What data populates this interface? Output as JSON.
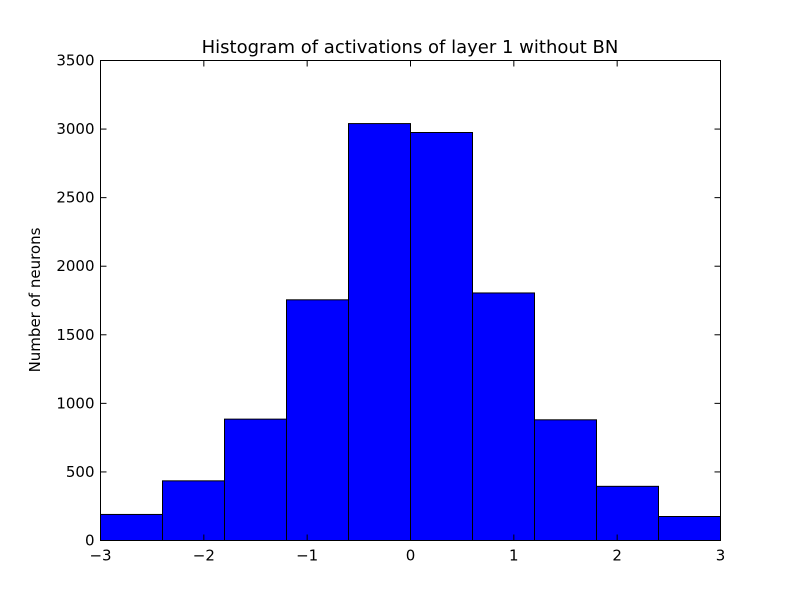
{
  "chart_data": {
    "type": "bar",
    "title": "Histogram of activations of layer 1  without BN",
    "xlabel": "",
    "ylabel": "Number of neurons",
    "bin_edges": [
      -3,
      -2.4,
      -1.8,
      -1.2,
      -0.6,
      0,
      0.6,
      1.2,
      1.8,
      2.4,
      3
    ],
    "values": [
      190,
      435,
      885,
      1755,
      3040,
      2975,
      1805,
      880,
      395,
      175
    ],
    "xlim": [
      -3,
      3
    ],
    "ylim": [
      0,
      3500
    ],
    "xticks": [
      -3,
      -2,
      -1,
      0,
      1,
      2,
      3
    ],
    "xtick_labels": [
      "−3",
      "−2",
      "−1",
      "0",
      "1",
      "2",
      "3"
    ],
    "yticks": [
      0,
      500,
      1000,
      1500,
      2000,
      2500,
      3000,
      3500
    ],
    "ytick_labels": [
      "0",
      "500",
      "1000",
      "1500",
      "2000",
      "2500",
      "3000",
      "3500"
    ],
    "bar_color": "#0000ff",
    "grid": false
  }
}
